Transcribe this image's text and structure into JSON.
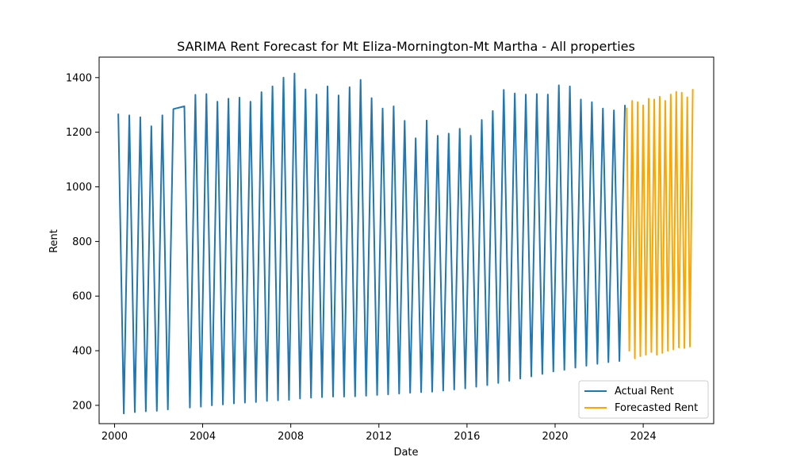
{
  "chart_data": {
    "type": "line",
    "title": "SARIMA Rent Forecast for Mt Eliza-Mornington-Mt Martha - All properties",
    "xlabel": "Date",
    "ylabel": "Rent",
    "xlim": [
      1999.3,
      2027.2
    ],
    "ylim": [
      133,
      1475
    ],
    "xticks": [
      2000,
      2004,
      2008,
      2012,
      2016,
      2020,
      2024
    ],
    "yticks": [
      200,
      400,
      600,
      800,
      1000,
      1200,
      1400
    ],
    "grid": false,
    "legend_position": "bottom-right",
    "colors": {
      "actual": "#1f77b4",
      "forecast": "#ffa500"
    },
    "series": [
      {
        "name": "Actual Rent",
        "x": [
          2000.17,
          2000.42,
          2000.67,
          2000.92,
          2001.17,
          2001.42,
          2001.67,
          2001.92,
          2002.17,
          2002.42,
          2002.67,
          2003.17,
          2003.42,
          2003.67,
          2003.92,
          2004.17,
          2004.42,
          2004.67,
          2004.92,
          2005.17,
          2005.42,
          2005.67,
          2005.92,
          2006.17,
          2006.42,
          2006.67,
          2006.92,
          2007.17,
          2007.42,
          2007.67,
          2007.92,
          2008.17,
          2008.42,
          2008.67,
          2008.92,
          2009.17,
          2009.42,
          2009.67,
          2009.92,
          2010.17,
          2010.42,
          2010.67,
          2010.92,
          2011.17,
          2011.42,
          2011.67,
          2011.92,
          2012.17,
          2012.42,
          2012.67,
          2012.92,
          2013.17,
          2013.42,
          2013.67,
          2013.92,
          2014.17,
          2014.42,
          2014.67,
          2014.92,
          2015.17,
          2015.42,
          2015.67,
          2015.92,
          2016.17,
          2016.42,
          2016.67,
          2016.92,
          2017.17,
          2017.42,
          2017.67,
          2017.92,
          2018.17,
          2018.42,
          2018.67,
          2018.92,
          2019.17,
          2019.42,
          2019.67,
          2019.92,
          2020.17,
          2020.42,
          2020.67,
          2020.92,
          2021.17,
          2021.42,
          2021.67,
          2021.92,
          2022.17,
          2022.42,
          2022.67,
          2022.92,
          2023.17
        ],
        "values": [
          1268,
          170,
          1262,
          175,
          1255,
          178,
          1222,
          180,
          1262,
          185,
          1285,
          1295,
          192,
          1337,
          195,
          1340,
          200,
          1312,
          203,
          1323,
          207,
          1327,
          210,
          1312,
          212,
          1347,
          216,
          1368,
          218,
          1400,
          220,
          1415,
          225,
          1357,
          228,
          1338,
          230,
          1368,
          232,
          1335,
          232,
          1365,
          233,
          1392,
          235,
          1325,
          238,
          1287,
          240,
          1295,
          243,
          1242,
          246,
          1178,
          248,
          1243,
          250,
          1187,
          254,
          1195,
          258,
          1213,
          262,
          1187,
          268,
          1245,
          274,
          1278,
          282,
          1355,
          290,
          1342,
          298,
          1338,
          306,
          1340,
          315,
          1338,
          324,
          1372,
          330,
          1368,
          338,
          1320,
          345,
          1310,
          352,
          1287,
          358,
          1280,
          362,
          1300
        ]
      },
      {
        "name": "Forecasted Rent",
        "x": [
          2023.25,
          2023.37,
          2023.5,
          2023.62,
          2023.75,
          2023.87,
          2024.0,
          2024.12,
          2024.25,
          2024.37,
          2024.5,
          2024.62,
          2024.75,
          2024.87,
          2025.0,
          2025.12,
          2025.25,
          2025.37,
          2025.5,
          2025.62,
          2025.75,
          2025.87,
          2026.0,
          2026.12,
          2026.25
        ],
        "values": [
          1290,
          400,
          1315,
          372,
          1310,
          380,
          1298,
          385,
          1323,
          395,
          1320,
          385,
          1330,
          392,
          1315,
          400,
          1338,
          405,
          1348,
          412,
          1345,
          410,
          1328,
          415,
          1358
        ]
      }
    ]
  }
}
